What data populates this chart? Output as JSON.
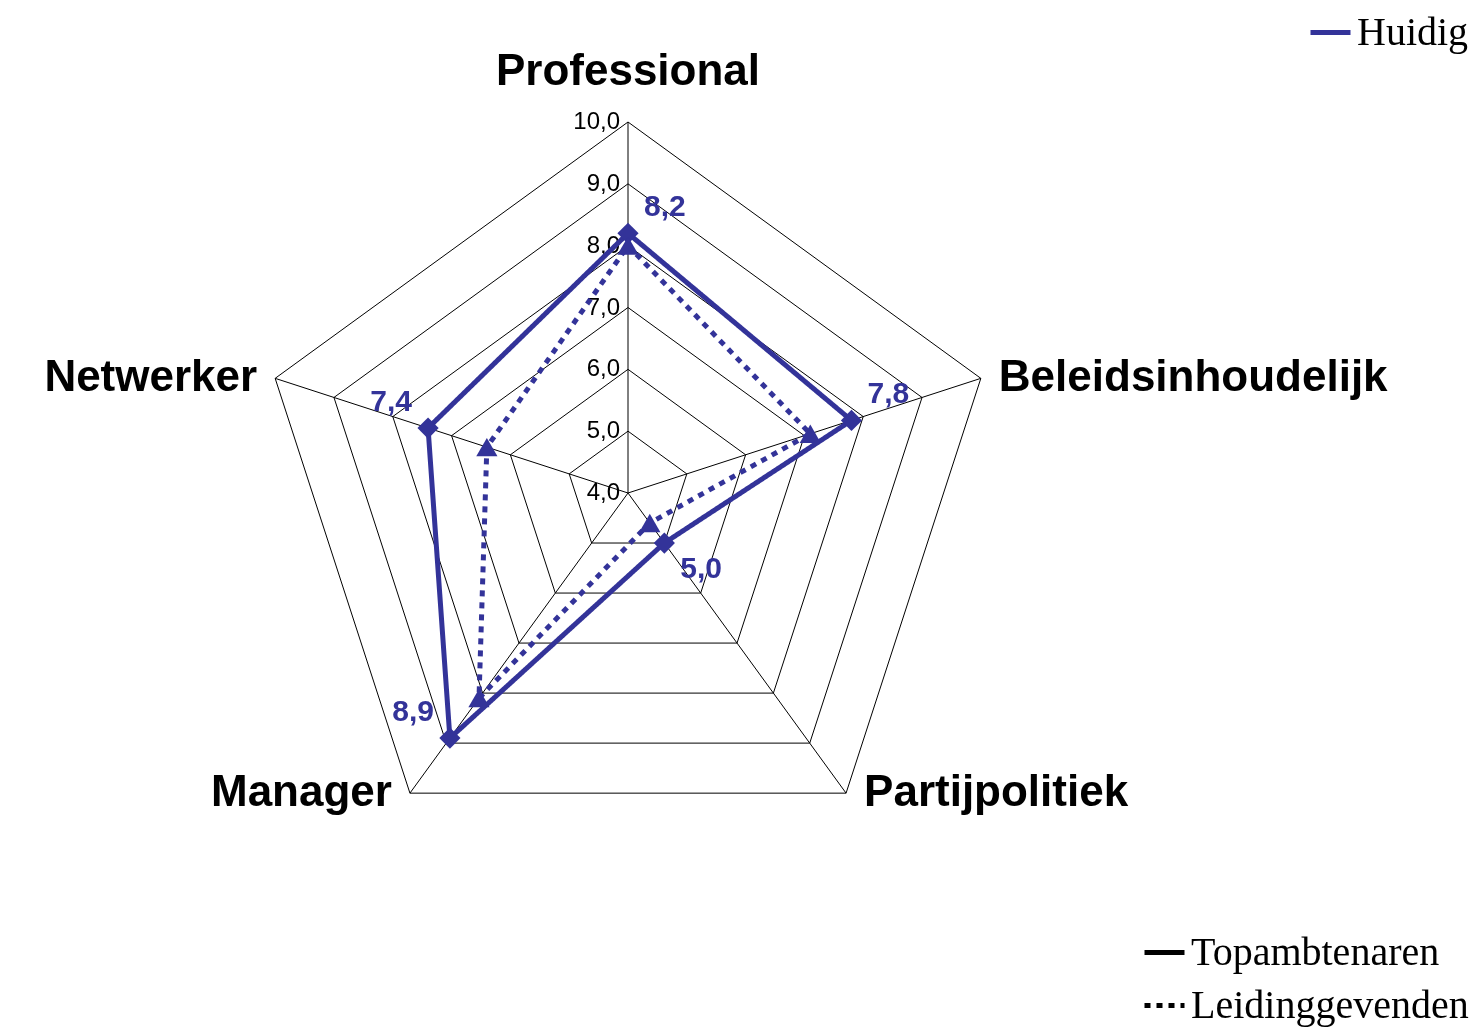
{
  "chart_data": {
    "type": "radar",
    "categories": [
      "Professional",
      "Beleidsinhoudelijk",
      "Partijpolitiek",
      "Manager",
      "Netwerker"
    ],
    "ylim": [
      4,
      10
    ],
    "yticks": [
      {
        "value": 4,
        "label": "4,0"
      },
      {
        "value": 5,
        "label": "5,0"
      },
      {
        "value": 6,
        "label": "6,0"
      },
      {
        "value": 7,
        "label": "7,0"
      },
      {
        "value": 8,
        "label": "8,0"
      },
      {
        "value": 9,
        "label": "9,0"
      },
      {
        "value": 10,
        "label": "10,0"
      }
    ],
    "legend_title": "Huidig",
    "legend": "bottom right",
    "grid": true,
    "series": [
      {
        "name": "Topambtenaren",
        "color": "#333399",
        "values": [
          8.2,
          7.8,
          5.0,
          8.9,
          7.4
        ],
        "line_style": "solid",
        "marker": "diamond",
        "value_labels": [
          "8,2",
          "7,8",
          "5,0",
          "8,9",
          "7,4"
        ]
      },
      {
        "name": "Leidinggevenden",
        "color": "#333399",
        "values": [
          8.0,
          7.1,
          4.6,
          8.1,
          6.4
        ],
        "line_style": "dotted",
        "marker": "triangle"
      }
    ]
  }
}
